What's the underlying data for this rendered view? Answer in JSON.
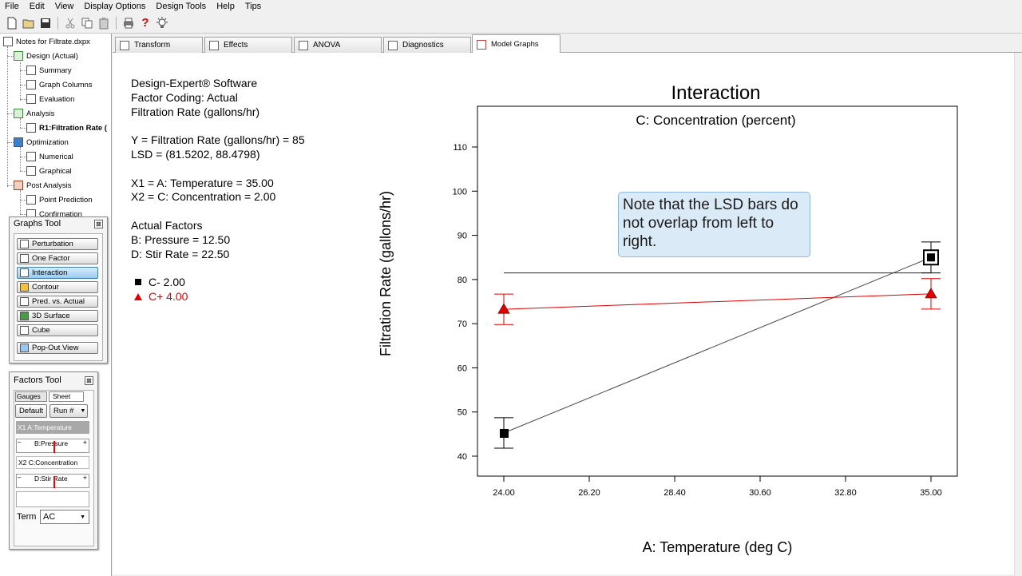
{
  "menu": [
    "File",
    "Edit",
    "View",
    "Display Options",
    "Design Tools",
    "Help",
    "Tips"
  ],
  "toolbar_icons": [
    "new-file-icon",
    "open-folder-icon",
    "save-icon",
    "cut-icon",
    "copy-icon",
    "paste-icon",
    "print-icon",
    "help-icon",
    "tip-icon"
  ],
  "tree": {
    "root": "Notes for Filtrate.dxpx",
    "design": "Design (Actual)",
    "summary": "Summary",
    "graph_columns": "Graph Columns",
    "evaluation": "Evaluation",
    "analysis": "Analysis",
    "response": "R1:Filtration Rate (",
    "optimization": "Optimization",
    "numerical": "Numerical",
    "graphical": "Graphical",
    "post_analysis": "Post Analysis",
    "point_prediction": "Point Prediction",
    "confirmation": "Confirmation"
  },
  "graphs_tool": {
    "title": "Graphs Tool",
    "close": "⊠",
    "buttons": [
      "Perturbation",
      "One Factor",
      "Interaction",
      "Contour",
      "Pred. vs. Actual",
      "3D Surface",
      "Cube"
    ],
    "popout": "Pop-Out View"
  },
  "factors_tool": {
    "title": "Factors Tool",
    "close": "⊠",
    "gauges": "Gauges",
    "sheet": "Sheet",
    "default": "Default",
    "run": "Run #",
    "x1": "X1  A:Temperature",
    "pressure": "B:Pressure",
    "x2": "X2  C:Concentration",
    "stir": "D:Stir Rate",
    "minus": "–",
    "plus": "+",
    "term_label": "Term",
    "term_value": "AC"
  },
  "tabs": [
    "Transform",
    "Effects",
    "ANOVA",
    "Diagnostics",
    "Model Graphs"
  ],
  "info": {
    "line1": "Design-Expert® Software",
    "line2": "Factor Coding: Actual",
    "line3": "Filtration Rate (gallons/hr)",
    "line4": "Y = Filtration Rate (gallons/hr) = 85",
    "line5": "LSD = (81.5202, 88.4798)",
    "line6": "X1 = A: Temperature = 35.00",
    "line7": "X2 = C: Concentration = 2.00",
    "line8": "Actual Factors",
    "line9": "B: Pressure = 12.50",
    "line10": "D: Stir Rate = 22.50",
    "legend_low": "C- 2.00",
    "legend_high": "C+ 4.00"
  },
  "callout": "Note that the LSD bars do not overlap from left to right.",
  "colors": {
    "low_series": "#000000",
    "high_series": "#e00000",
    "callout_bg": "#dbeaf7"
  },
  "chart_data": {
    "type": "line",
    "title": "Interaction",
    "subtitle": "C: Concentration (percent)",
    "xlabel": "A: Temperature (deg C)",
    "ylabel": "Filtration Rate (gallons/hr)",
    "xlim": [
      24.0,
      35.0
    ],
    "ylim": [
      40,
      110
    ],
    "x_ticks": [
      "24.00",
      "26.20",
      "28.40",
      "30.60",
      "32.80",
      "35.00"
    ],
    "y_ticks": [
      "40",
      "50",
      "60",
      "70",
      "80",
      "90",
      "100",
      "110"
    ],
    "x": [
      24.0,
      35.0
    ],
    "series": [
      {
        "name": "C- 2.00",
        "values": [
          45.25,
          85.0
        ],
        "lsd_low": [
          41.8,
          81.5
        ],
        "lsd_high": [
          48.7,
          88.5
        ],
        "marker": "square"
      },
      {
        "name": "C+ 4.00",
        "values": [
          73.25,
          76.75
        ],
        "lsd_low": [
          69.8,
          73.3
        ],
        "lsd_high": [
          76.7,
          80.2
        ],
        "marker": "triangle"
      }
    ],
    "reference_line_y": 81.5,
    "grid": false,
    "legend": "left"
  }
}
